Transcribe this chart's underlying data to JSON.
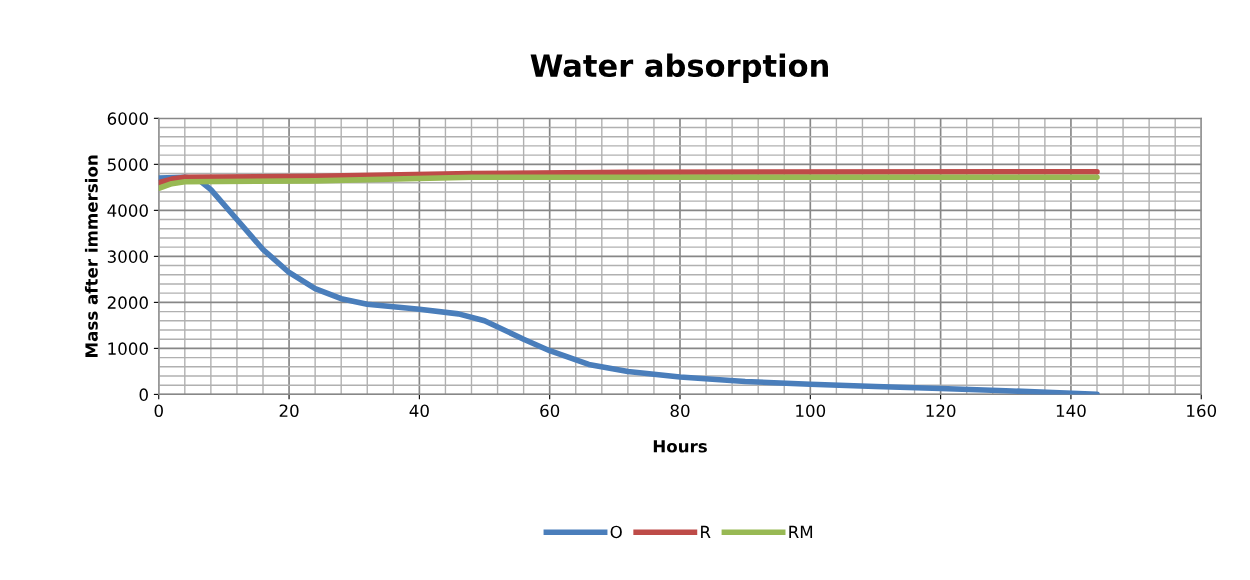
{
  "chart_data": {
    "type": "line",
    "title": "Water absorption",
    "xlabel": "Hours",
    "ylabel": "Mass after immersion",
    "xlim": [
      0,
      160
    ],
    "xticks": [
      0,
      20,
      40,
      60,
      80,
      100,
      120,
      140,
      160
    ],
    "ylim": [
      0,
      6000
    ],
    "yticks": [
      0,
      1000,
      2000,
      3000,
      4000,
      5000,
      6000
    ],
    "grid": true,
    "legend": "bottom",
    "marker": "none",
    "line_style": "solid",
    "series": [
      {
        "name": "O",
        "color": "#4a7ebb",
        "x": [
          0,
          4,
          6,
          8,
          12,
          16,
          20,
          24,
          28,
          32,
          40,
          46,
          50,
          56,
          60,
          66,
          72,
          80,
          90,
          100,
          110,
          120,
          130,
          144
        ],
        "values": [
          4700,
          4720,
          4680,
          4450,
          3800,
          3150,
          2650,
          2300,
          2080,
          1960,
          1850,
          1750,
          1600,
          1200,
          950,
          650,
          500,
          380,
          280,
          220,
          170,
          130,
          80,
          0
        ]
      },
      {
        "name": "R",
        "color": "#be4b48",
        "x": [
          0,
          2,
          4,
          24,
          48,
          72,
          144
        ],
        "values": [
          4600,
          4680,
          4720,
          4740,
          4800,
          4830,
          4840
        ]
      },
      {
        "name": "RM",
        "color": "#98b954",
        "x": [
          0,
          2,
          4,
          24,
          48,
          72,
          144
        ],
        "values": [
          4480,
          4580,
          4620,
          4640,
          4720,
          4720,
          4720
        ]
      }
    ]
  }
}
